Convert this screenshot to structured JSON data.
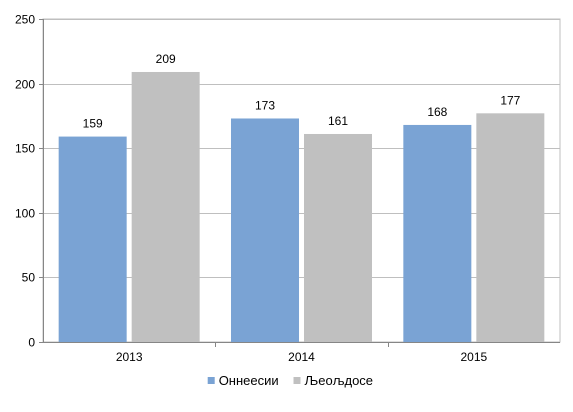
{
  "chart_data": {
    "type": "bar",
    "categories": [
      "2013",
      "2014",
      "2015"
    ],
    "series": [
      {
        "name": "Оннеесии",
        "values": [
          159,
          173,
          168
        ],
        "color": "#7aa3d4"
      },
      {
        "name": "Љеољдосе",
        "values": [
          209,
          161,
          177
        ],
        "color": "#c0c0c0"
      }
    ],
    "title": "",
    "xlabel": "",
    "ylabel": "",
    "ylim": [
      0,
      250
    ],
    "yticks": [
      0,
      50,
      100,
      150,
      200,
      250
    ],
    "grid": true,
    "legend_position": "bottom",
    "data_labels": true
  }
}
